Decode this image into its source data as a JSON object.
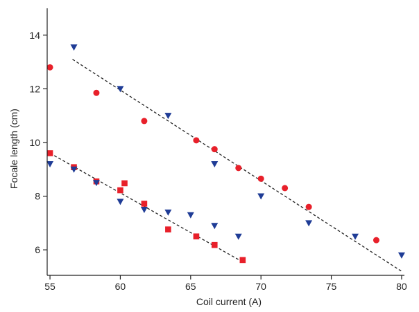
{
  "chart_data": {
    "type": "scatter",
    "title": "",
    "xlabel": "Coil current (A)",
    "ylabel": "Focale length (cm)",
    "xlim": [
      54.8,
      80.2
    ],
    "ylim": [
      5.05,
      15.0
    ],
    "xticks": [
      55,
      60,
      65,
      70,
      75,
      80
    ],
    "yticks": [
      6,
      8,
      10,
      12,
      14
    ],
    "grid": false,
    "legend": "none",
    "series": [
      {
        "marker": "circle",
        "color": "#e8202a",
        "points": [
          [
            55.0,
            12.8
          ],
          [
            58.3,
            11.85
          ],
          [
            61.7,
            10.8
          ],
          [
            65.4,
            10.08
          ],
          [
            66.7,
            9.75
          ],
          [
            68.4,
            9.05
          ],
          [
            70.0,
            8.65
          ],
          [
            71.7,
            8.3
          ],
          [
            73.4,
            7.6
          ],
          [
            78.2,
            6.36
          ]
        ]
      },
      {
        "marker": "triangle-down",
        "color": "#1f3c96",
        "points": [
          [
            56.7,
            13.55
          ],
          [
            60.0,
            12.0
          ],
          [
            63.4,
            11.0
          ],
          [
            66.7,
            9.2
          ],
          [
            70.0,
            8.0
          ],
          [
            73.4,
            7.0
          ],
          [
            76.7,
            6.5
          ],
          [
            80.0,
            5.8
          ]
        ]
      },
      {
        "marker": "square",
        "color": "#e8202a",
        "points": [
          [
            55.0,
            9.6
          ],
          [
            56.7,
            9.08
          ],
          [
            58.3,
            8.55
          ],
          [
            60.0,
            8.22
          ],
          [
            60.3,
            8.48
          ],
          [
            61.7,
            7.72
          ],
          [
            63.4,
            6.76
          ],
          [
            65.4,
            6.5
          ],
          [
            66.7,
            6.18
          ],
          [
            68.7,
            5.62
          ]
        ]
      },
      {
        "marker": "triangle-down",
        "color": "#1f3c96",
        "points": [
          [
            55.0,
            9.2
          ],
          [
            56.7,
            9.0
          ],
          [
            58.3,
            8.5
          ],
          [
            60.0,
            7.8
          ],
          [
            61.7,
            7.5
          ],
          [
            63.4,
            7.4
          ],
          [
            65.0,
            7.3
          ],
          [
            66.7,
            6.9
          ],
          [
            68.4,
            6.5
          ]
        ]
      }
    ],
    "fit_lines": [
      {
        "x": [
          56.6,
          80.0
        ],
        "y": [
          13.1,
          5.2
        ],
        "style": "dashed",
        "color": "#222222"
      },
      {
        "x": [
          55.0,
          68.7
        ],
        "y": [
          9.6,
          5.55
        ],
        "style": "dashed",
        "color": "#222222"
      }
    ]
  }
}
